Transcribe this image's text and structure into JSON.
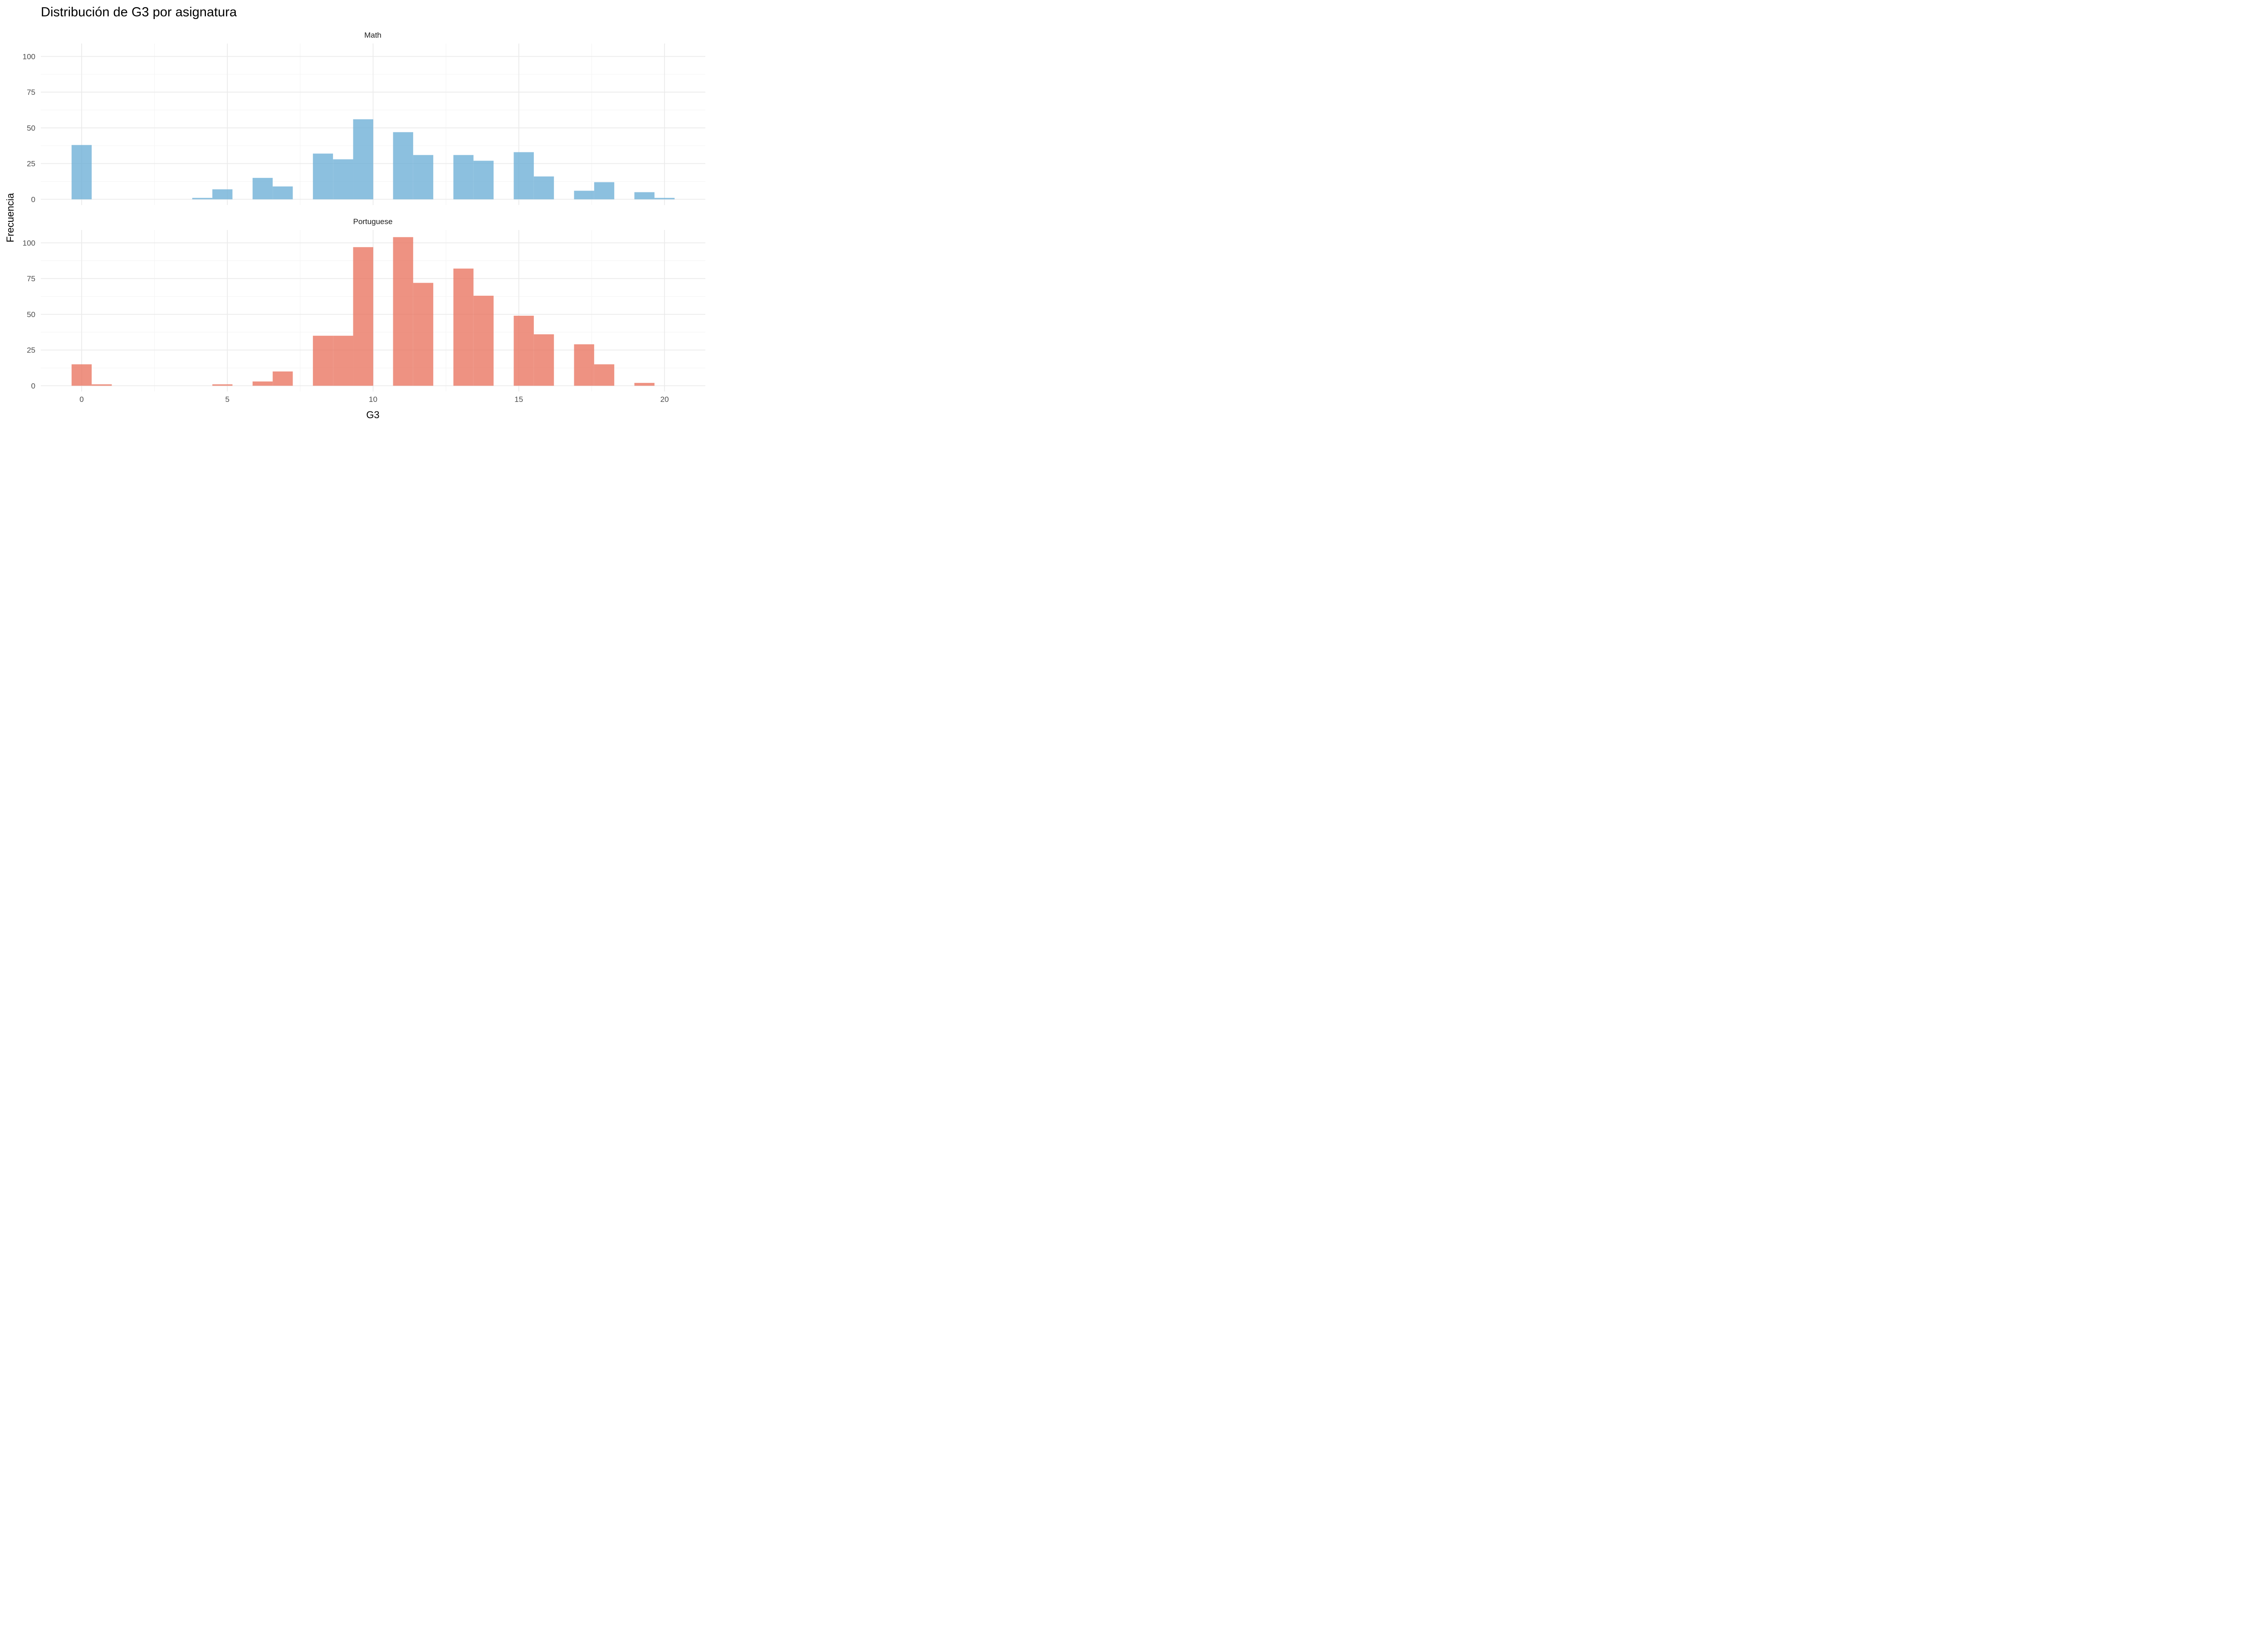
{
  "chart_data": {
    "type": "bar",
    "title": "Distribución de G3 por asignatura",
    "xlabel": "G3",
    "ylabel": "Frecuencia",
    "xlim": [
      -1.4,
      21.4
    ],
    "ylim": [
      -4,
      109
    ],
    "x_ticks": [
      0,
      5,
      10,
      15,
      20
    ],
    "y_ticks": [
      0,
      25,
      50,
      75,
      100
    ],
    "bin_width": 0.6897,
    "grid": true,
    "legend": "none",
    "facets": [
      {
        "name": "Math",
        "color": "#6BAED6",
        "bins": [
          {
            "x": 0.0,
            "count": 38
          },
          {
            "x": 4.14,
            "count": 1
          },
          {
            "x": 4.83,
            "count": 7
          },
          {
            "x": 6.21,
            "count": 15
          },
          {
            "x": 6.9,
            "count": 9
          },
          {
            "x": 8.28,
            "count": 32
          },
          {
            "x": 8.97,
            "count": 28
          },
          {
            "x": 9.66,
            "count": 56
          },
          {
            "x": 11.03,
            "count": 47
          },
          {
            "x": 11.72,
            "count": 31
          },
          {
            "x": 13.1,
            "count": 31
          },
          {
            "x": 13.79,
            "count": 27
          },
          {
            "x": 15.17,
            "count": 33
          },
          {
            "x": 15.86,
            "count": 16
          },
          {
            "x": 17.24,
            "count": 6
          },
          {
            "x": 17.93,
            "count": 12
          },
          {
            "x": 19.31,
            "count": 5
          },
          {
            "x": 20.0,
            "count": 1
          }
        ]
      },
      {
        "name": "Portuguese",
        "color": "#E9735F",
        "bins": [
          {
            "x": 0.0,
            "count": 15
          },
          {
            "x": 0.69,
            "count": 1
          },
          {
            "x": 4.83,
            "count": 1
          },
          {
            "x": 6.21,
            "count": 3
          },
          {
            "x": 6.9,
            "count": 10
          },
          {
            "x": 8.28,
            "count": 35
          },
          {
            "x": 8.97,
            "count": 35
          },
          {
            "x": 9.66,
            "count": 97
          },
          {
            "x": 11.03,
            "count": 104
          },
          {
            "x": 11.72,
            "count": 72
          },
          {
            "x": 13.1,
            "count": 82
          },
          {
            "x": 13.79,
            "count": 63
          },
          {
            "x": 15.17,
            "count": 49
          },
          {
            "x": 15.86,
            "count": 36
          },
          {
            "x": 17.24,
            "count": 29
          },
          {
            "x": 17.93,
            "count": 15
          },
          {
            "x": 19.31,
            "count": 2
          }
        ]
      }
    ]
  }
}
